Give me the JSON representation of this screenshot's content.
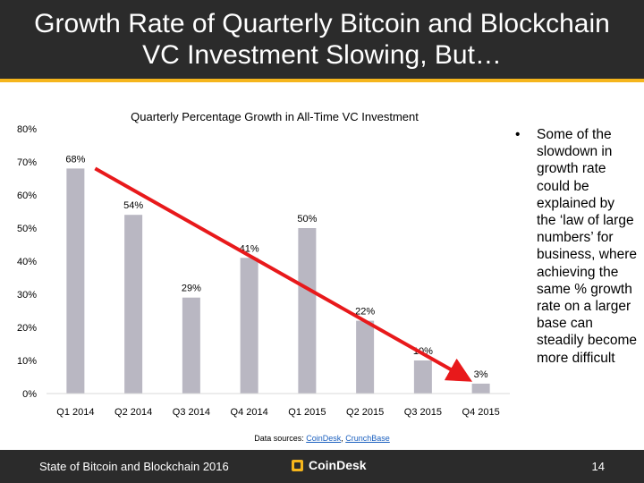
{
  "slide": {
    "title": "Growth Rate of Quarterly Bitcoin and Blockchain VC Investment Slowing, But…",
    "bullet": "Some of the slowdown in growth rate could be explained by the ‘law of large numbers’ for business, where achieving the same % growth rate on a larger base can steadily become more difficult",
    "bullet_marker": "•",
    "sources_prefix": "Data sources: ",
    "source_1": "CoinDesk",
    "source_sep": ", ",
    "source_2": "CrunchBase",
    "footer_left": "State of Bitcoin and Blockchain 2016",
    "footer_brand": "CoinDesk",
    "page_number": "14"
  },
  "colors": {
    "bar": "#b9b7c2",
    "arrow": "#e8191b",
    "accent": "#f5b51c",
    "header_bg": "#2b2b2b"
  },
  "chart_data": {
    "type": "bar",
    "title": "Quarterly Percentage Growth in All-Time VC Investment",
    "categories": [
      "Q1 2014",
      "Q2 2014",
      "Q3 2014",
      "Q4 2014",
      "Q1 2015",
      "Q2 2015",
      "Q3 2015",
      "Q4 2015"
    ],
    "values": [
      68,
      54,
      29,
      41,
      50,
      22,
      10,
      3
    ],
    "value_labels": [
      "68%",
      "54%",
      "29%",
      "41%",
      "50%",
      "22%",
      "10%",
      "3%"
    ],
    "ylim": [
      0,
      80
    ],
    "yticks": [
      "0%",
      "10%",
      "20%",
      "30%",
      "40%",
      "50%",
      "60%",
      "70%",
      "80%"
    ],
    "grid": false,
    "legend": "none",
    "annotations": [
      {
        "type": "trend-arrow",
        "from_category": "Q1 2014",
        "from_value": 68,
        "to_category": "Q4 2015",
        "to_value": 3
      }
    ]
  }
}
